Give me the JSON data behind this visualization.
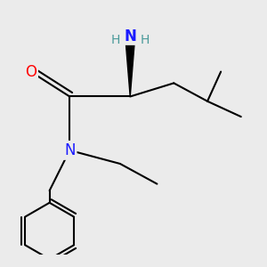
{
  "background_color": "#ebebeb",
  "atom_colors": {
    "N_amino": "#1a1aff",
    "N_amide": "#1a1aff",
    "O": "#ff0000",
    "H": "#4a9a9a"
  },
  "bond_color": "#000000",
  "bond_width": 1.5,
  "font_size_atom": 12,
  "font_size_H": 10
}
